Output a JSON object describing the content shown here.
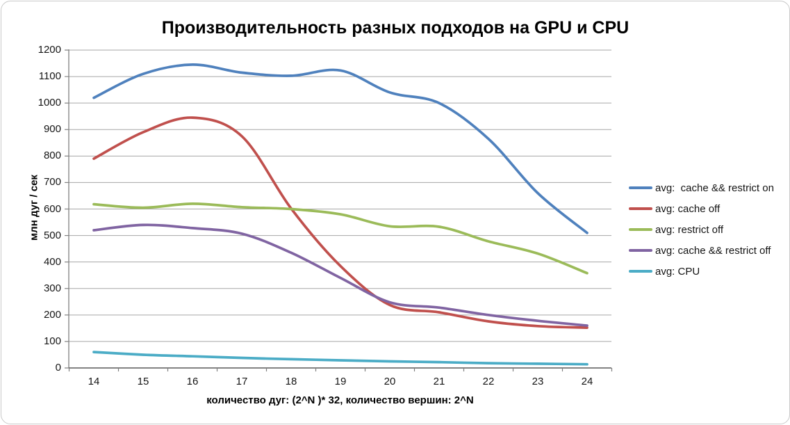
{
  "chart": {
    "title": "Производительность разных подходов на GPU и CPU",
    "xlabel": "количество дуг:  (2^N )* 32,  количество вершин: 2^N",
    "ylabel": "млн дуг / сек"
  },
  "chart_data": {
    "type": "line",
    "smoothed": true,
    "title": "Производительность разных подходов на GPU и CPU",
    "xlabel": "количество дуг:  (2^N )* 32,  количество вершин: 2^N",
    "ylabel": "млн дуг / сек",
    "categories": [
      14,
      15,
      16,
      17,
      18,
      19,
      20,
      21,
      22,
      23,
      24
    ],
    "series": [
      {
        "name": "avg:  cache && restrict on",
        "color": "#4F81BD",
        "values": [
          1020,
          1110,
          1145,
          1115,
          1103,
          1123,
          1040,
          1000,
          865,
          660,
          510
        ]
      },
      {
        "name": "avg: cache off",
        "color": "#C0504D",
        "values": [
          790,
          890,
          945,
          875,
          602,
          385,
          238,
          210,
          176,
          158,
          152
        ]
      },
      {
        "name": "avg: restrict off",
        "color": "#9BBB59",
        "values": [
          618,
          605,
          620,
          607,
          600,
          580,
          535,
          533,
          478,
          432,
          358
        ]
      },
      {
        "name": "avg: cache && restrict off",
        "color": "#8064A2",
        "values": [
          520,
          540,
          528,
          507,
          435,
          340,
          248,
          228,
          200,
          178,
          160
        ]
      },
      {
        "name": "avg: CPU",
        "color": "#4BACC6",
        "values": [
          60,
          50,
          44,
          38,
          33,
          29,
          25,
          22,
          18,
          16,
          14
        ]
      }
    ],
    "ylim": [
      0,
      1200
    ],
    "ystep": 100,
    "grid": true,
    "legend_position": "right"
  },
  "colors": {
    "gridline": "#a6a6a6",
    "y_axis": "#808080",
    "x_axis": "#595959",
    "tick": "#808080"
  }
}
